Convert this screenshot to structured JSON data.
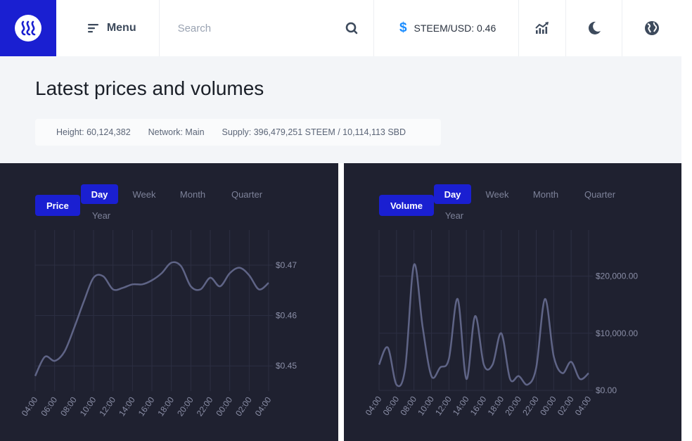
{
  "header": {
    "menu_label": "Menu",
    "search_placeholder": "Search",
    "price_label": "STEEM/USD: 0.46",
    "icons": [
      "steem-logo",
      "menu-icon",
      "search-icon",
      "dollar-icon",
      "chart-icon",
      "moon-icon",
      "globe-icon"
    ]
  },
  "page": {
    "title": "Latest prices and volumes",
    "stats": {
      "height": "Height: 60,124,382",
      "network": "Network: Main",
      "supply": "Supply: 396,479,251 STEEM / 10,114,113 SBD"
    }
  },
  "panels": {
    "price": {
      "mode_label": "Price",
      "tabs": [
        "Day",
        "Week",
        "Month",
        "Quarter",
        "Year"
      ],
      "active_tab": "Day"
    },
    "volume": {
      "mode_label": "Volume",
      "tabs": [
        "Day",
        "Week",
        "Month",
        "Quarter",
        "Year"
      ],
      "active_tab": "Day"
    }
  },
  "colors": {
    "accent": "#1a1fd1",
    "panel_bg": "#1f2130",
    "line": "#5f6486"
  },
  "chart_data": [
    {
      "type": "line",
      "x": [
        "04:00",
        "05:00",
        "06:00",
        "07:00",
        "08:00",
        "09:00",
        "10:00",
        "11:00",
        "12:00",
        "13:00",
        "14:00",
        "15:00",
        "16:00",
        "17:00",
        "18:00",
        "19:00",
        "20:00",
        "21:00",
        "22:00",
        "23:00",
        "00:00",
        "01:00",
        "02:00",
        "03:00",
        "04:00"
      ],
      "xticks": [
        "04:00",
        "06:00",
        "08:00",
        "10:00",
        "12:00",
        "14:00",
        "16:00",
        "18:00",
        "20:00",
        "22:00",
        "00:00",
        "02:00",
        "04:00"
      ],
      "values": [
        0.448,
        0.4518,
        0.451,
        0.4528,
        0.4575,
        0.4628,
        0.4675,
        0.4678,
        0.4652,
        0.4655,
        0.4662,
        0.4662,
        0.467,
        0.4684,
        0.4705,
        0.4698,
        0.4658,
        0.4652,
        0.4675,
        0.4658,
        0.4684,
        0.4695,
        0.468,
        0.4652,
        0.4665
      ],
      "ylabels": [
        "$0.47",
        "$0.46",
        "$0.45"
      ],
      "yticks": [
        0.47,
        0.46,
        0.45
      ],
      "ylim": [
        0.445,
        0.4735
      ],
      "axis_position": "right",
      "grid": true
    },
    {
      "type": "line",
      "x": [
        "04:00",
        "05:00",
        "06:00",
        "07:00",
        "08:00",
        "09:00",
        "10:00",
        "11:00",
        "12:00",
        "13:00",
        "14:00",
        "15:00",
        "16:00",
        "17:00",
        "18:00",
        "19:00",
        "20:00",
        "21:00",
        "22:00",
        "23:00",
        "00:00",
        "01:00",
        "02:00",
        "03:00",
        "04:00"
      ],
      "xticks": [
        "04:00",
        "06:00",
        "08:00",
        "10:00",
        "12:00",
        "14:00",
        "16:00",
        "18:00",
        "20:00",
        "22:00",
        "00:00",
        "02:00",
        "04:00"
      ],
      "values": [
        4500,
        7500,
        1000,
        4000,
        22000,
        11000,
        2500,
        4000,
        5500,
        16000,
        2000,
        13000,
        4500,
        4500,
        10000,
        2000,
        2500,
        1000,
        4000,
        16000,
        6000,
        3000,
        5000,
        2000,
        3000
      ],
      "ylabels": [
        "$20,000.00",
        "$10,000.00",
        "$0.00"
      ],
      "yticks": [
        20000,
        10000,
        0
      ],
      "ylim": [
        0,
        25000
      ],
      "axis_position": "right",
      "grid": true
    }
  ]
}
